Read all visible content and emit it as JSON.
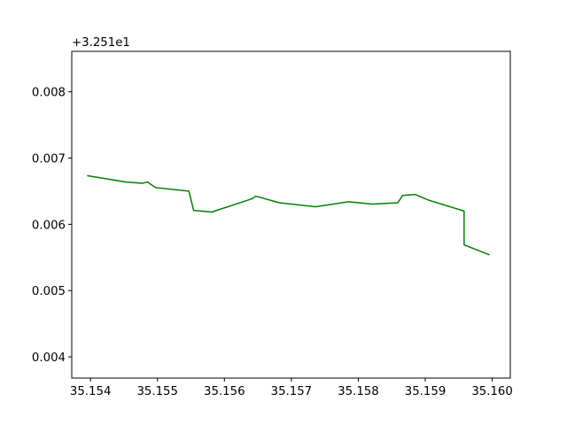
{
  "chart_data": {
    "type": "line",
    "title": "",
    "xlabel": "",
    "ylabel": "",
    "y_offset_text": "+3.251e1",
    "xlim": [
      35.15372,
      35.16027
    ],
    "ylim": [
      0.00368,
      0.00861
    ],
    "x_ticks": [
      35.154,
      35.155,
      35.156,
      35.157,
      35.158,
      35.159,
      35.16
    ],
    "x_tick_labels": [
      "35.154",
      "35.155",
      "35.156",
      "35.157",
      "35.158",
      "35.159",
      "35.160"
    ],
    "y_ticks": [
      0.004,
      0.005,
      0.006,
      0.007,
      0.008
    ],
    "y_tick_labels": [
      "0.004",
      "0.005",
      "0.006",
      "0.007",
      "0.008"
    ],
    "grid": false,
    "series": [
      {
        "color": "#008000",
        "points": [
          [
            35.15395,
            0.006735
          ],
          [
            35.15452,
            0.00664
          ],
          [
            35.15478,
            0.00662
          ],
          [
            35.15485,
            0.00664
          ],
          [
            35.15497,
            0.006555
          ],
          [
            35.15547,
            0.0065
          ],
          [
            35.15554,
            0.00621
          ],
          [
            35.15581,
            0.006185
          ],
          [
            35.15641,
            0.006385
          ],
          [
            35.15647,
            0.006425
          ],
          [
            35.15682,
            0.006325
          ],
          [
            35.15736,
            0.006265
          ],
          [
            35.15785,
            0.00634
          ],
          [
            35.15821,
            0.006305
          ],
          [
            35.15859,
            0.006325
          ],
          [
            35.15866,
            0.006435
          ],
          [
            35.15885,
            0.00645
          ],
          [
            35.15905,
            0.006365
          ],
          [
            35.15958,
            0.0062
          ],
          [
            35.15958,
            0.00569
          ],
          [
            35.15996,
            0.00554
          ]
        ]
      }
    ]
  }
}
